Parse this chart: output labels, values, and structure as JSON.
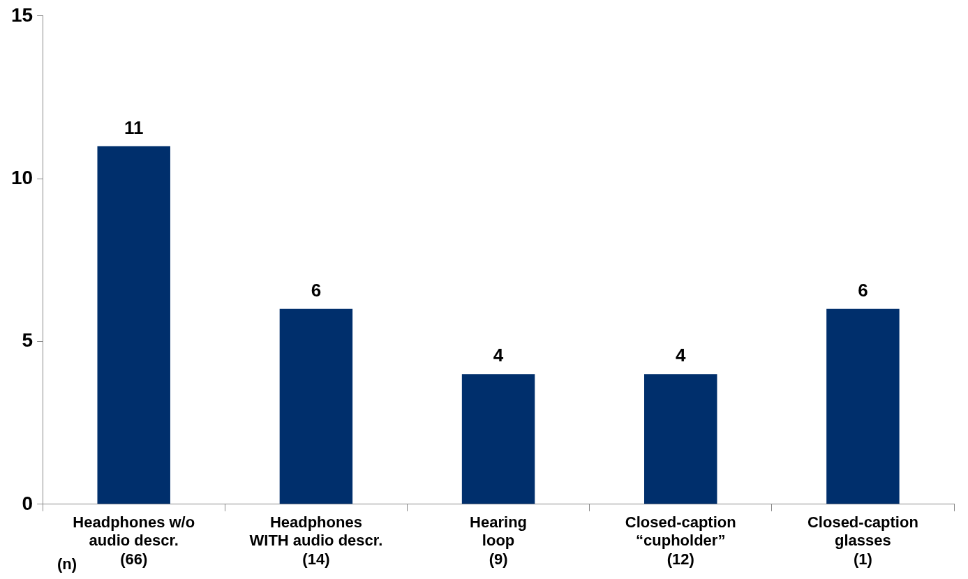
{
  "chart_data": {
    "type": "bar",
    "categories": [
      "Headphones w/o\naudio descr.\n(66)",
      "Headphones\nWITH audio descr.\n(14)",
      "Hearing\nloop\n(9)",
      "Closed-caption\n“cupholder”\n(12)",
      "Closed-caption\nglasses\n(1)"
    ],
    "values": [
      11,
      6,
      4,
      4,
      6
    ],
    "color": "#002f6c",
    "ylim": [
      0,
      15
    ],
    "yticks": [
      0,
      5,
      10,
      15
    ],
    "grid": false,
    "legend": false,
    "data_labels": true,
    "annotations": [
      "(n)"
    ]
  }
}
